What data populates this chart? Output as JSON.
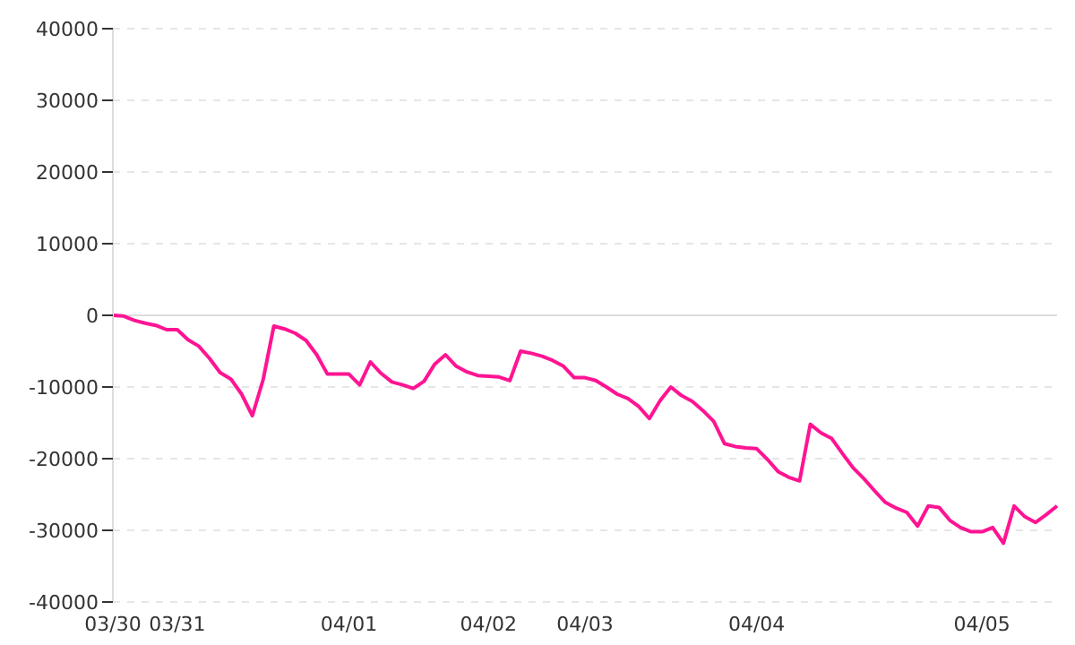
{
  "chart_data": {
    "type": "line",
    "categories": [
      "03/30",
      null,
      null,
      null,
      null,
      null,
      "03/31",
      null,
      null,
      null,
      null,
      null,
      null,
      null,
      null,
      null,
      null,
      null,
      null,
      null,
      null,
      null,
      "04/01",
      null,
      null,
      null,
      null,
      null,
      null,
      null,
      null,
      null,
      null,
      null,
      null,
      "04/02",
      null,
      null,
      null,
      null,
      null,
      null,
      null,
      null,
      "04/03",
      null,
      null,
      null,
      null,
      null,
      null,
      null,
      null,
      null,
      null,
      null,
      null,
      null,
      null,
      null,
      "04/04",
      null,
      null,
      null,
      null,
      null,
      null,
      null,
      null,
      null,
      null,
      null,
      null,
      null,
      null,
      null,
      null,
      null,
      null,
      null,
      null,
      "04/05",
      null,
      null,
      null,
      null,
      null,
      null,
      null
    ],
    "series": [
      {
        "color": "#ff1493",
        "values": [
          0,
          -100,
          -700,
          -1100,
          -1400,
          -2000,
          -2000,
          -3400,
          -4300,
          -6000,
          -8000,
          -8900,
          -11000,
          -14000,
          -9000,
          -1500,
          -1900,
          -2500,
          -3500,
          -5500,
          -8200,
          -8200,
          -8200,
          -9700,
          -6500,
          -8100,
          -9300,
          -9700,
          -10200,
          -9200,
          -6800,
          -5500,
          -7100,
          -7900,
          -8400,
          -8500,
          -8600,
          -9100,
          -5000,
          -5300,
          -5700,
          -6300,
          -7100,
          -8700,
          -8700,
          -9100,
          -10000,
          -11000,
          -11600,
          -12700,
          -14400,
          -11900,
          -10000,
          -11200,
          -12000,
          -13300,
          -14800,
          -17900,
          -18300,
          -18500,
          -18600,
          -20100,
          -21800,
          -22600,
          -23100,
          -15200,
          -16400,
          -17200,
          -19300,
          -21300,
          -22800,
          -24500,
          -26100,
          -26900,
          -27500,
          -29400,
          -26600,
          -26800,
          -28600,
          -29600,
          -30200,
          -30200,
          -29600,
          -31800,
          -26600,
          -28100,
          -28900,
          -27800,
          -26600
        ]
      }
    ],
    "ylim": [
      -40000,
      40000
    ],
    "yticks": [
      -40000,
      -30000,
      -20000,
      -10000,
      0,
      10000,
      20000,
      30000,
      40000
    ],
    "grid": "y",
    "marker": "none",
    "line_style": "solid",
    "legend": false,
    "ref_lines": [
      {
        "axis": "y",
        "value": 0,
        "color": "#dddddd"
      }
    ]
  }
}
